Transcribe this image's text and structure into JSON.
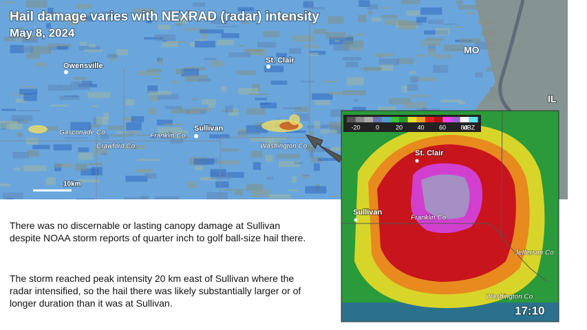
{
  "title": "Hail damage varies with NEXRAD (radar) intensity",
  "date": "May 8, 2024",
  "map": {
    "places": [
      "Owensville",
      "St. Clair",
      "Sullivan"
    ],
    "counties": [
      "Gasconade Co.",
      "Crawford Co.",
      "Franklin Co.",
      "Washington Co."
    ],
    "states": [
      "MO",
      "IL"
    ],
    "scale": "10km"
  },
  "radar": {
    "colorbar": {
      "ticks": [
        "-20",
        "0",
        "20",
        "40",
        "60",
        "80"
      ],
      "unit": "dBZ"
    },
    "places": [
      "St. Clair",
      "Sullivan"
    ],
    "counties": [
      "Franklin Co.",
      "Jefferson Co.",
      "Washington Co."
    ],
    "time": "17:10"
  },
  "text": {
    "paragraphs": [
      "There was no discernable or lasting canopy damage at Sullivan despite NOAA storm reports of quarter inch to golf ball-size hail there.",
      "The storm reached peak intensity 20 km east of Sullivan where the radar intensified, so the hail there was likely substantially larger or of longer duration than it was at Sullivan."
    ]
  }
}
